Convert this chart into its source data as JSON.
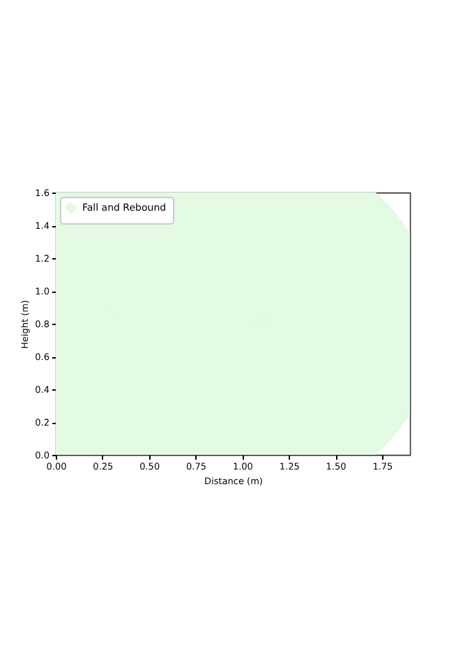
{
  "chart_data": {
    "type": "line",
    "xlabel": "Distance (m)",
    "ylabel": "Height (m)",
    "series": [
      {
        "name": "Fall and Rebound",
        "color": "#e2fbe2",
        "x": [
          0.3,
          1.1
        ],
        "values": [
          0.9,
          0.8
        ]
      }
    ],
    "xlim": [
      0,
      1.9
    ],
    "xticks": [
      {
        "value": 0,
        "label": "0.00"
      },
      {
        "value": 0.25,
        "label": "0.25"
      },
      {
        "value": 0.5,
        "label": "0.50"
      },
      {
        "value": 0.75,
        "label": "0.75"
      },
      {
        "value": 1,
        "label": "1.00"
      },
      {
        "value": 1.25,
        "label": "1.25"
      },
      {
        "value": 1.5,
        "label": "1.50"
      },
      {
        "value": 1.75,
        "label": "1.75"
      }
    ],
    "ylim": [
      0,
      1.6
    ],
    "yticks": [
      {
        "value": 0,
        "label": "0.0"
      },
      {
        "value": 0.2,
        "label": "0.2"
      },
      {
        "value": 0.4,
        "label": "0.4"
      },
      {
        "value": 0.6,
        "label": "0.6"
      },
      {
        "value": 0.8,
        "label": "0.8"
      },
      {
        "value": 1,
        "label": "1.0"
      },
      {
        "value": 1.2,
        "label": "1.2"
      },
      {
        "value": 1.4,
        "label": "1.4"
      },
      {
        "value": 1.6,
        "label": "1.6"
      }
    ],
    "legend": "top left",
    "marker": "circle",
    "line_style": "dashed",
    "grid": false
  }
}
